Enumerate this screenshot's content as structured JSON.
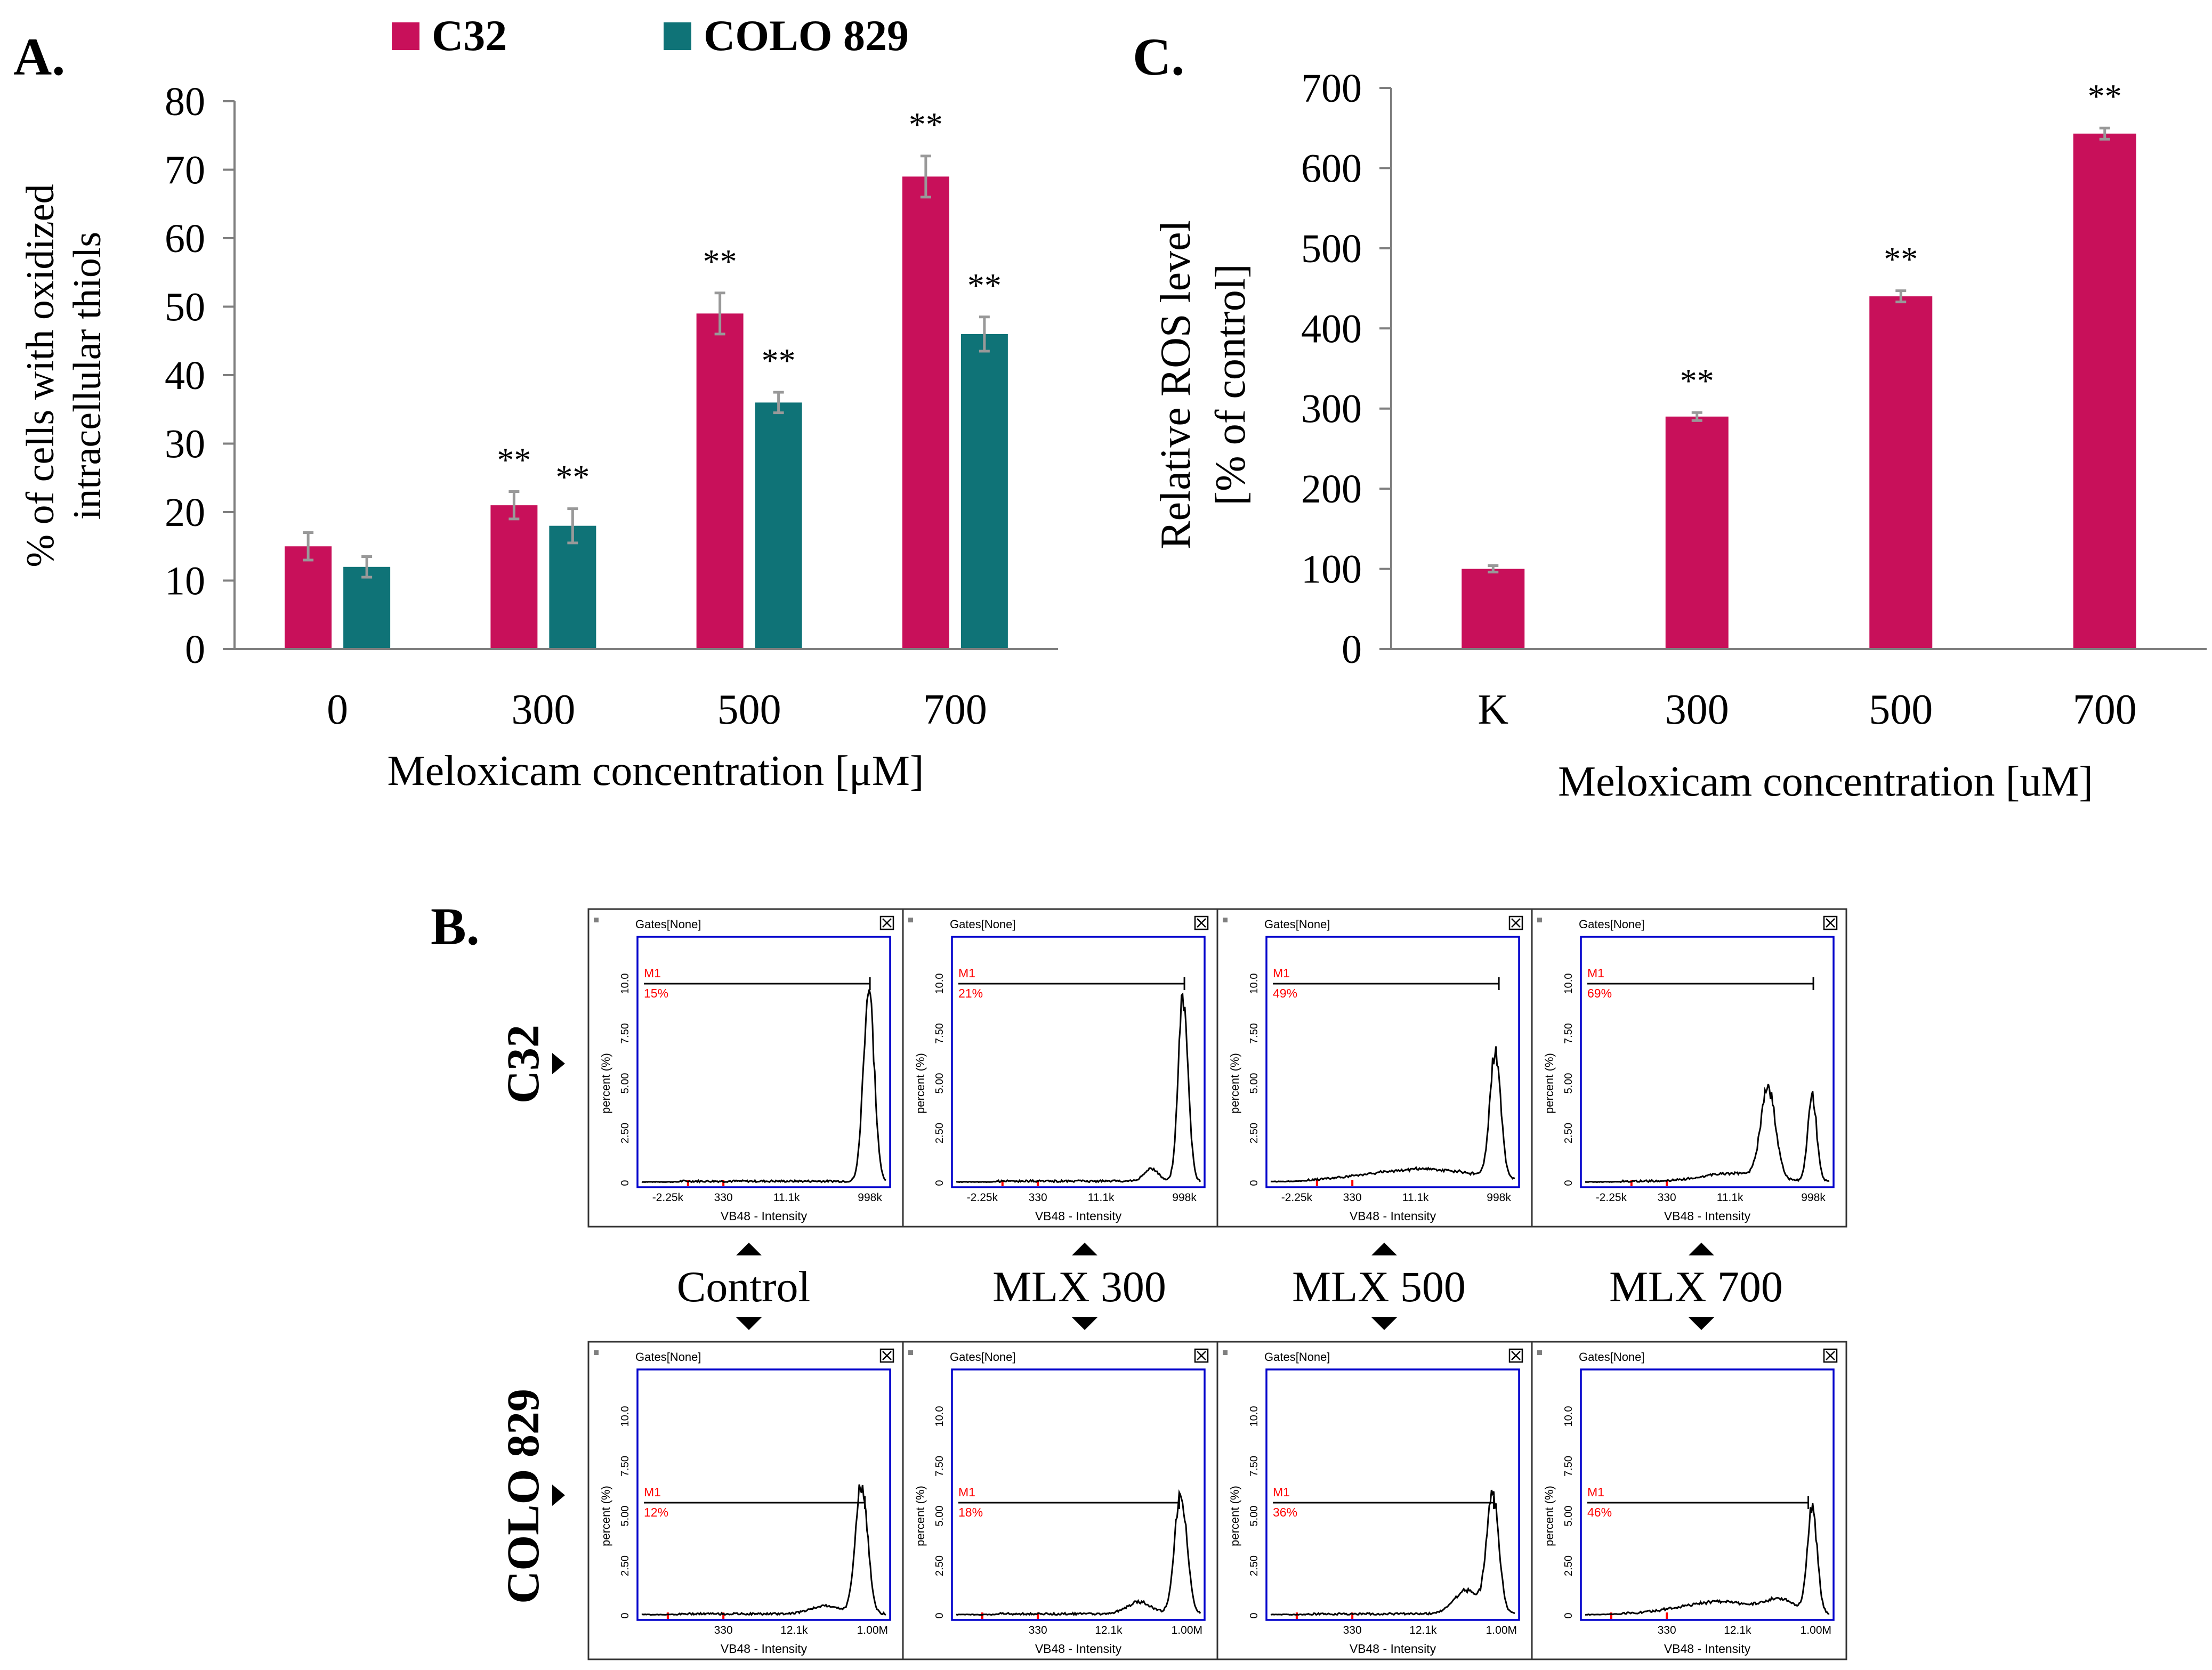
{
  "colors": {
    "c32": "#C8105A",
    "colo829": "#0F7377",
    "axis": "#7F7F7F",
    "error": "#999999",
    "flow_frame": "#0000CC",
    "flow_red": "#FF0000",
    "flow_line": "#000000"
  },
  "panel_a": {
    "label": "A.",
    "legend": [
      "C32",
      "COLO 829"
    ],
    "chart_data": {
      "type": "bar",
      "title": "",
      "categories": [
        "0",
        "300",
        "500",
        "700"
      ],
      "series": [
        {
          "name": "C32",
          "values": [
            15,
            21,
            49,
            69
          ],
          "errors": [
            2,
            2,
            3,
            3
          ],
          "significance": [
            "",
            "**",
            "**",
            "**"
          ]
        },
        {
          "name": "COLO 829",
          "values": [
            12,
            18,
            36,
            46
          ],
          "errors": [
            1.5,
            2.5,
            1.5,
            2.5
          ],
          "significance": [
            "",
            "**",
            "**",
            "**"
          ]
        }
      ],
      "xlabel": "Meloxicam concentration [μM]",
      "ylabel_lines": [
        "% of cells with oxidized",
        "intracellular thiols"
      ],
      "ylim": [
        0,
        80
      ],
      "yticks": [
        "0",
        "10",
        "20",
        "30",
        "40",
        "50",
        "60",
        "70",
        "80"
      ],
      "grid": false
    }
  },
  "panel_c": {
    "label": "C.",
    "chart_data": {
      "type": "bar",
      "title": "",
      "categories": [
        "K",
        "300",
        "500",
        "700"
      ],
      "series": [
        {
          "name": "C32",
          "values": [
            100,
            290,
            440,
            643
          ],
          "errors": [
            4,
            5,
            7,
            7
          ],
          "significance": [
            "",
            "**",
            "**",
            "**"
          ]
        }
      ],
      "xlabel": "Meloxicam concentration [uM]",
      "ylabel_lines": [
        "Relative ROS level",
        "[% of control]"
      ],
      "ylim": [
        0,
        700
      ],
      "yticks": [
        "0",
        "100",
        "200",
        "300",
        "400",
        "500",
        "600",
        "700"
      ],
      "grid": false
    }
  },
  "panel_b": {
    "label": "B.",
    "row_labels": [
      "C32",
      "COLO 829"
    ],
    "column_labels": [
      "Control",
      "MLX 300",
      "MLX 500",
      "MLX 700"
    ],
    "histogram_common": {
      "header": "Gates[None]",
      "marker": "M1",
      "y_label": "percent (%)",
      "y_ticks": [
        "0",
        "2.50",
        "5.00",
        "7.50",
        "10.0"
      ],
      "x_label": "VB48 - Intensity"
    },
    "histograms": [
      {
        "row": "C32",
        "treatment": "Control",
        "m1_percent": "15%",
        "x_ticks": [
          "-2.25k",
          "330",
          "11.1k",
          "998k"
        ]
      },
      {
        "row": "C32",
        "treatment": "MLX 300",
        "m1_percent": "21%",
        "x_ticks": [
          "-2.25k",
          "330",
          "11.1k",
          "998k"
        ]
      },
      {
        "row": "C32",
        "treatment": "MLX 500",
        "m1_percent": "49%",
        "x_ticks": [
          "-2.25k",
          "330",
          "11.1k",
          "998k"
        ]
      },
      {
        "row": "C32",
        "treatment": "MLX 700",
        "m1_percent": "69%",
        "x_ticks": [
          "-2.25k",
          "330",
          "11.1k",
          "998k"
        ]
      },
      {
        "row": "COLO 829",
        "treatment": "Control",
        "m1_percent": "12%",
        "x_ticks": [
          "330",
          "12.1k",
          "1.00M"
        ]
      },
      {
        "row": "COLO 829",
        "treatment": "MLX 300",
        "m1_percent": "18%",
        "x_ticks": [
          "330",
          "12.1k",
          "1.00M"
        ]
      },
      {
        "row": "COLO 829",
        "treatment": "MLX 500",
        "m1_percent": "36%",
        "x_ticks": [
          "330",
          "12.1k",
          "1.00M"
        ]
      },
      {
        "row": "COLO 829",
        "treatment": "MLX 700",
        "m1_percent": "46%",
        "x_ticks": [
          "330",
          "12.1k",
          "1.00M"
        ]
      }
    ]
  }
}
